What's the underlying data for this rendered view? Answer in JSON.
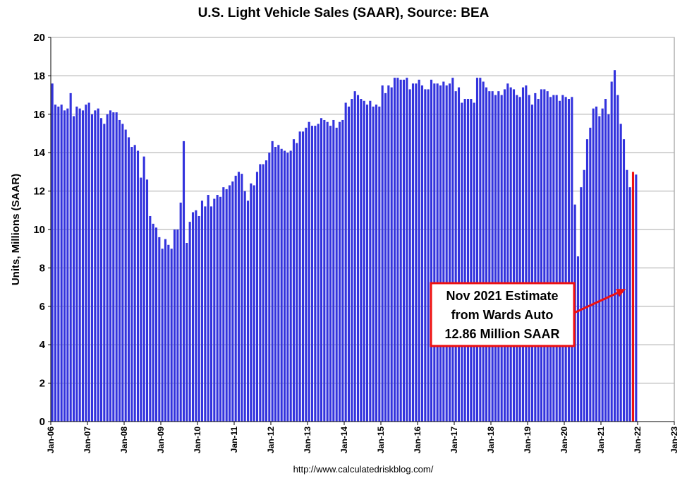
{
  "chart_data": {
    "type": "bar",
    "title": "U.S. Light Vehicle Sales (SAAR), Source: BEA",
    "ylabel": "Units, Millions (SAAR)",
    "source_text": "http://www.calculatedriskblog.com/",
    "ylim": [
      0,
      20
    ],
    "y_ticks": [
      "0",
      "2",
      "4",
      "6",
      "8",
      "10",
      "12",
      "14",
      "16",
      "18",
      "20"
    ],
    "x_ticks": [
      "Jan-06",
      "Jan-07",
      "Jan-08",
      "Jan-09",
      "Jan-10",
      "Jan-11",
      "Jan-12",
      "Jan-13",
      "Jan-14",
      "Jan-15",
      "Jan-16",
      "Jan-17",
      "Jan-18",
      "Jan-19",
      "Jan-20",
      "Jan-21",
      "Jan-22",
      "Jan-23"
    ],
    "x_start": "Jan-06",
    "x_end": "Jan-23",
    "grid": true,
    "bar_color": "#3333dd",
    "highlight_color": "#ee1111",
    "series": [
      {
        "values": [
          17.6,
          16.5,
          16.4,
          16.5,
          16.2,
          16.3,
          17.1,
          15.9,
          16.4,
          16.3,
          16.2,
          16.5,
          16.6,
          16.0,
          16.2,
          16.3,
          15.8,
          15.5,
          16.0,
          16.2,
          16.1,
          16.1,
          15.7,
          15.5,
          15.2,
          14.8,
          14.3,
          14.4,
          14.1,
          12.7,
          13.8,
          12.6,
          10.7,
          10.3,
          10.1,
          9.6,
          9.0,
          9.5,
          9.2,
          9.0,
          10.0,
          10.0,
          11.4,
          14.6,
          9.3,
          10.4,
          10.9,
          11.0,
          10.7,
          11.5,
          11.2,
          11.8,
          11.2,
          11.6,
          11.8,
          11.7,
          12.2,
          12.1,
          12.3,
          12.5,
          12.8,
          13.0,
          12.9,
          12.0,
          11.5,
          12.4,
          12.3,
          13.0,
          13.4,
          13.4,
          13.6,
          14.0,
          14.6,
          14.3,
          14.4,
          14.2,
          14.1,
          14.0,
          14.1,
          14.7,
          14.5,
          15.1,
          15.1,
          15.3,
          15.6,
          15.4,
          15.4,
          15.5,
          15.8,
          15.7,
          15.6,
          15.4,
          15.7,
          15.3,
          15.6,
          15.7,
          16.6,
          16.4,
          16.8,
          17.2,
          17.0,
          16.8,
          16.7,
          16.5,
          16.7,
          16.4,
          16.5,
          16.4,
          17.5,
          17.1,
          17.5,
          17.4,
          17.9,
          17.9,
          17.8,
          17.8,
          17.9,
          17.3,
          17.6,
          17.6,
          17.8,
          17.5,
          17.3,
          17.3,
          17.8,
          17.6,
          17.6,
          17.5,
          17.7,
          17.5,
          17.6,
          17.9,
          17.2,
          17.4,
          16.6,
          16.8,
          16.8,
          16.8,
          16.6,
          17.9,
          17.9,
          17.7,
          17.4,
          17.2,
          17.2,
          17.0,
          17.2,
          17.0,
          17.3,
          17.6,
          17.4,
          17.3,
          17.0,
          16.9,
          17.4,
          17.5,
          17.0,
          16.5,
          17.1,
          16.8,
          17.3,
          17.3,
          17.2,
          16.9,
          17.0,
          17.0,
          16.7,
          17.0,
          16.9,
          16.8,
          16.9,
          11.3,
          8.6,
          12.2,
          13.1,
          14.7,
          15.3,
          16.3,
          16.4,
          15.9,
          16.3,
          16.8,
          16.0,
          17.7,
          18.3,
          17.0,
          15.5,
          14.7,
          13.1,
          12.2,
          13.0,
          12.86
        ]
      }
    ],
    "highlight_index": 190,
    "callout": {
      "lines": [
        "Nov 2021 Estimate",
        "from Wards Auto",
        "12.86 Million SAAR"
      ],
      "arrow_target_value": 6.9
    }
  }
}
